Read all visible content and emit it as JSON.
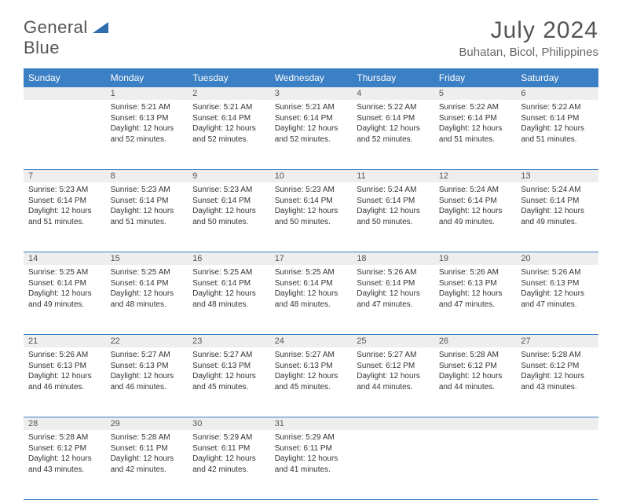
{
  "logo": {
    "word1": "General",
    "word2": "Blue"
  },
  "title": "July 2024",
  "location": "Buhatan, Bicol, Philippines",
  "colors": {
    "header_bg": "#3b7fc4",
    "daynum_bg": "#eeeeee",
    "border": "#3b7fc4"
  },
  "weekdays": [
    "Sunday",
    "Monday",
    "Tuesday",
    "Wednesday",
    "Thursday",
    "Friday",
    "Saturday"
  ],
  "weeks": [
    {
      "nums": [
        "",
        "1",
        "2",
        "3",
        "4",
        "5",
        "6"
      ],
      "cells": [
        null,
        {
          "sunrise": "Sunrise: 5:21 AM",
          "sunset": "Sunset: 6:13 PM",
          "dl1": "Daylight: 12 hours",
          "dl2": "and 52 minutes."
        },
        {
          "sunrise": "Sunrise: 5:21 AM",
          "sunset": "Sunset: 6:14 PM",
          "dl1": "Daylight: 12 hours",
          "dl2": "and 52 minutes."
        },
        {
          "sunrise": "Sunrise: 5:21 AM",
          "sunset": "Sunset: 6:14 PM",
          "dl1": "Daylight: 12 hours",
          "dl2": "and 52 minutes."
        },
        {
          "sunrise": "Sunrise: 5:22 AM",
          "sunset": "Sunset: 6:14 PM",
          "dl1": "Daylight: 12 hours",
          "dl2": "and 52 minutes."
        },
        {
          "sunrise": "Sunrise: 5:22 AM",
          "sunset": "Sunset: 6:14 PM",
          "dl1": "Daylight: 12 hours",
          "dl2": "and 51 minutes."
        },
        {
          "sunrise": "Sunrise: 5:22 AM",
          "sunset": "Sunset: 6:14 PM",
          "dl1": "Daylight: 12 hours",
          "dl2": "and 51 minutes."
        }
      ]
    },
    {
      "nums": [
        "7",
        "8",
        "9",
        "10",
        "11",
        "12",
        "13"
      ],
      "cells": [
        {
          "sunrise": "Sunrise: 5:23 AM",
          "sunset": "Sunset: 6:14 PM",
          "dl1": "Daylight: 12 hours",
          "dl2": "and 51 minutes."
        },
        {
          "sunrise": "Sunrise: 5:23 AM",
          "sunset": "Sunset: 6:14 PM",
          "dl1": "Daylight: 12 hours",
          "dl2": "and 51 minutes."
        },
        {
          "sunrise": "Sunrise: 5:23 AM",
          "sunset": "Sunset: 6:14 PM",
          "dl1": "Daylight: 12 hours",
          "dl2": "and 50 minutes."
        },
        {
          "sunrise": "Sunrise: 5:23 AM",
          "sunset": "Sunset: 6:14 PM",
          "dl1": "Daylight: 12 hours",
          "dl2": "and 50 minutes."
        },
        {
          "sunrise": "Sunrise: 5:24 AM",
          "sunset": "Sunset: 6:14 PM",
          "dl1": "Daylight: 12 hours",
          "dl2": "and 50 minutes."
        },
        {
          "sunrise": "Sunrise: 5:24 AM",
          "sunset": "Sunset: 6:14 PM",
          "dl1": "Daylight: 12 hours",
          "dl2": "and 49 minutes."
        },
        {
          "sunrise": "Sunrise: 5:24 AM",
          "sunset": "Sunset: 6:14 PM",
          "dl1": "Daylight: 12 hours",
          "dl2": "and 49 minutes."
        }
      ]
    },
    {
      "nums": [
        "14",
        "15",
        "16",
        "17",
        "18",
        "19",
        "20"
      ],
      "cells": [
        {
          "sunrise": "Sunrise: 5:25 AM",
          "sunset": "Sunset: 6:14 PM",
          "dl1": "Daylight: 12 hours",
          "dl2": "and 49 minutes."
        },
        {
          "sunrise": "Sunrise: 5:25 AM",
          "sunset": "Sunset: 6:14 PM",
          "dl1": "Daylight: 12 hours",
          "dl2": "and 48 minutes."
        },
        {
          "sunrise": "Sunrise: 5:25 AM",
          "sunset": "Sunset: 6:14 PM",
          "dl1": "Daylight: 12 hours",
          "dl2": "and 48 minutes."
        },
        {
          "sunrise": "Sunrise: 5:25 AM",
          "sunset": "Sunset: 6:14 PM",
          "dl1": "Daylight: 12 hours",
          "dl2": "and 48 minutes."
        },
        {
          "sunrise": "Sunrise: 5:26 AM",
          "sunset": "Sunset: 6:14 PM",
          "dl1": "Daylight: 12 hours",
          "dl2": "and 47 minutes."
        },
        {
          "sunrise": "Sunrise: 5:26 AM",
          "sunset": "Sunset: 6:13 PM",
          "dl1": "Daylight: 12 hours",
          "dl2": "and 47 minutes."
        },
        {
          "sunrise": "Sunrise: 5:26 AM",
          "sunset": "Sunset: 6:13 PM",
          "dl1": "Daylight: 12 hours",
          "dl2": "and 47 minutes."
        }
      ]
    },
    {
      "nums": [
        "21",
        "22",
        "23",
        "24",
        "25",
        "26",
        "27"
      ],
      "cells": [
        {
          "sunrise": "Sunrise: 5:26 AM",
          "sunset": "Sunset: 6:13 PM",
          "dl1": "Daylight: 12 hours",
          "dl2": "and 46 minutes."
        },
        {
          "sunrise": "Sunrise: 5:27 AM",
          "sunset": "Sunset: 6:13 PM",
          "dl1": "Daylight: 12 hours",
          "dl2": "and 46 minutes."
        },
        {
          "sunrise": "Sunrise: 5:27 AM",
          "sunset": "Sunset: 6:13 PM",
          "dl1": "Daylight: 12 hours",
          "dl2": "and 45 minutes."
        },
        {
          "sunrise": "Sunrise: 5:27 AM",
          "sunset": "Sunset: 6:13 PM",
          "dl1": "Daylight: 12 hours",
          "dl2": "and 45 minutes."
        },
        {
          "sunrise": "Sunrise: 5:27 AM",
          "sunset": "Sunset: 6:12 PM",
          "dl1": "Daylight: 12 hours",
          "dl2": "and 44 minutes."
        },
        {
          "sunrise": "Sunrise: 5:28 AM",
          "sunset": "Sunset: 6:12 PM",
          "dl1": "Daylight: 12 hours",
          "dl2": "and 44 minutes."
        },
        {
          "sunrise": "Sunrise: 5:28 AM",
          "sunset": "Sunset: 6:12 PM",
          "dl1": "Daylight: 12 hours",
          "dl2": "and 43 minutes."
        }
      ]
    },
    {
      "nums": [
        "28",
        "29",
        "30",
        "31",
        "",
        "",
        ""
      ],
      "cells": [
        {
          "sunrise": "Sunrise: 5:28 AM",
          "sunset": "Sunset: 6:12 PM",
          "dl1": "Daylight: 12 hours",
          "dl2": "and 43 minutes."
        },
        {
          "sunrise": "Sunrise: 5:28 AM",
          "sunset": "Sunset: 6:11 PM",
          "dl1": "Daylight: 12 hours",
          "dl2": "and 42 minutes."
        },
        {
          "sunrise": "Sunrise: 5:29 AM",
          "sunset": "Sunset: 6:11 PM",
          "dl1": "Daylight: 12 hours",
          "dl2": "and 42 minutes."
        },
        {
          "sunrise": "Sunrise: 5:29 AM",
          "sunset": "Sunset: 6:11 PM",
          "dl1": "Daylight: 12 hours",
          "dl2": "and 41 minutes."
        },
        null,
        null,
        null
      ]
    }
  ]
}
